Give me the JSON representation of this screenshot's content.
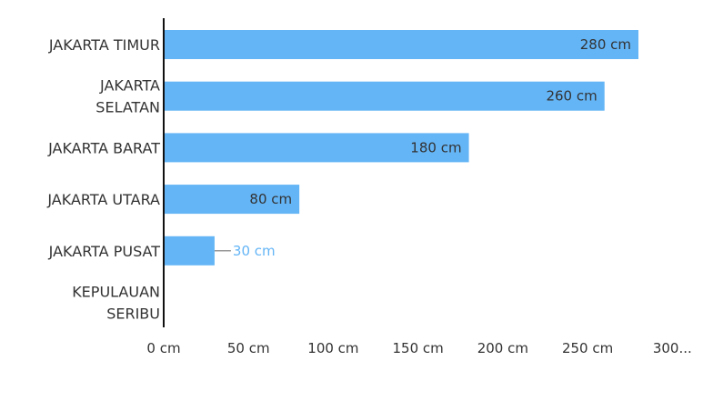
{
  "chart_data": {
    "type": "bar",
    "orientation": "horizontal",
    "categories": [
      "JAKARTA TIMUR",
      "JAKARTA SELATAN",
      "JAKARTA BARAT",
      "JAKARTA UTARA",
      "JAKARTA PUSAT",
      "KEPULAUAN SERIBU"
    ],
    "category_lines": [
      [
        "JAKARTA TIMUR"
      ],
      [
        "JAKARTA",
        "SELATAN"
      ],
      [
        "JAKARTA BARAT"
      ],
      [
        "JAKARTA UTARA"
      ],
      [
        "JAKARTA PUSAT"
      ],
      [
        "KEPULAUAN",
        "SERIBU"
      ]
    ],
    "values": [
      280,
      260,
      180,
      80,
      30,
      0
    ],
    "value_labels": [
      "280 cm",
      "260 cm",
      "180 cm",
      "80 cm",
      "30 cm",
      ""
    ],
    "xlim": [
      0,
      300
    ],
    "x_ticks": [
      0,
      50,
      100,
      150,
      200,
      250,
      300
    ],
    "x_tick_labels": [
      "0 cm",
      "50 cm",
      "100 cm",
      "150 cm",
      "200 cm",
      "250 cm",
      "300..."
    ],
    "grid": false,
    "colors": {
      "bar": "#64b5f6",
      "label_inside": "#333333",
      "label_outside": "#64b5f6",
      "axis": "#111111",
      "leader": "#999999"
    }
  }
}
